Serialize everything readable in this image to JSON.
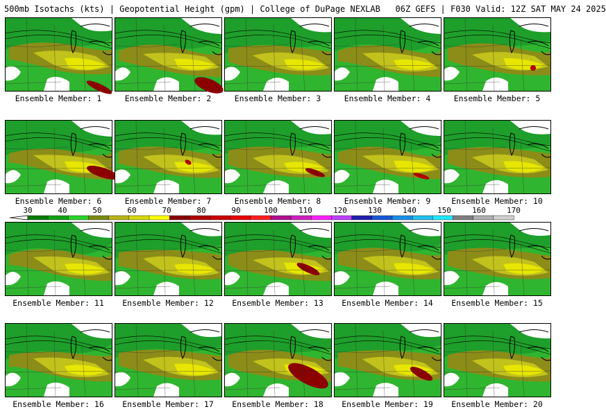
{
  "header": {
    "title": "500mb Isotachs (kts) | Geopotential Height (gpm) | College of DuPage NEXLAB   06Z GEFS | F030 Valid: 12Z SAT MAY 24 2025"
  },
  "colorbar": {
    "labels": [
      "30",
      "40",
      "50",
      "60",
      "70",
      "80",
      "90",
      "100",
      "110",
      "120",
      "130",
      "140",
      "150",
      "160",
      "170"
    ],
    "colors": [
      "#007a00",
      "#12a312",
      "#2ad32a",
      "#7a8c10",
      "#b8b417",
      "#d8d80a",
      "#ffff00",
      "#8b0000",
      "#b00000",
      "#cc0000",
      "#e80000",
      "#ff2020",
      "#b01090",
      "#d020c0",
      "#ff20ff",
      "#c040ff",
      "#2020b0",
      "#1858d8",
      "#1890e8",
      "#20c0f0",
      "#20e8ff",
      "#808080",
      "#b0b0b0",
      "#d0d0d0"
    ],
    "tick_values": [
      30,
      40,
      50,
      60,
      70,
      80,
      90,
      100,
      110,
      120,
      130,
      140,
      150,
      160,
      170
    ],
    "range": [
      25,
      175
    ]
  },
  "members": [
    {
      "label": "Ensemble Member: 1",
      "jet_max": "dark-red core"
    },
    {
      "label": "Ensemble Member: 2",
      "jet_max": "dark-red core"
    },
    {
      "label": "Ensemble Member: 3",
      "jet_max": "none"
    },
    {
      "label": "Ensemble Member: 4",
      "jet_max": "none"
    },
    {
      "label": "Ensemble Member: 5",
      "jet_max": "small red core"
    },
    {
      "label": "Ensemble Member: 6",
      "jet_max": "dark-red core"
    },
    {
      "label": "Ensemble Member: 7",
      "jet_max": "small red core"
    },
    {
      "label": "Ensemble Member: 8",
      "jet_max": "dark-red core"
    },
    {
      "label": "Ensemble Member: 9",
      "jet_max": "small red core"
    },
    {
      "label": "Ensemble Member: 10",
      "jet_max": "none"
    },
    {
      "label": "Ensemble Member: 11",
      "jet_max": "none"
    },
    {
      "label": "Ensemble Member: 12",
      "jet_max": "none"
    },
    {
      "label": "Ensemble Member: 13",
      "jet_max": "dark-red core"
    },
    {
      "label": "Ensemble Member: 14",
      "jet_max": "none"
    },
    {
      "label": "Ensemble Member: 15",
      "jet_max": "none"
    },
    {
      "label": "Ensemble Member: 16",
      "jet_max": "none"
    },
    {
      "label": "Ensemble Member: 17",
      "jet_max": "none"
    },
    {
      "label": "Ensemble Member: 18",
      "jet_max": "large dark-red core"
    },
    {
      "label": "Ensemble Member: 19",
      "jet_max": "dark-red core"
    },
    {
      "label": "Ensemble Member: 20",
      "jet_max": "none"
    }
  ]
}
